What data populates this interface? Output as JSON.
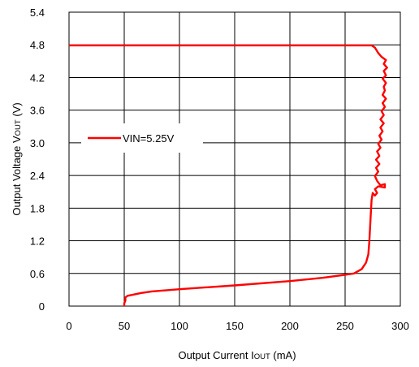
{
  "chart_data": {
    "type": "line",
    "xlabel": {
      "main": "Output Current I",
      "sub": "OUT",
      "unit": " (mA)"
    },
    "ylabel": {
      "main": "Output Voltage V",
      "sub": "OUT",
      "unit": " (V)"
    },
    "xlim": [
      0,
      300
    ],
    "ylim": [
      0,
      5.4
    ],
    "x_ticks": [
      "0",
      "50",
      "100",
      "150",
      "200",
      "250",
      "300"
    ],
    "y_ticks": [
      "0",
      "0.6",
      "1.2",
      "1.8",
      "2.4",
      "3.0",
      "3.6",
      "4.2",
      "4.8",
      "5.4"
    ],
    "grid": true,
    "legend_position": "left-middle",
    "series_color": "#ff0000",
    "series": [
      {
        "name": "VIN=5.25V",
        "points": [
          [
            0,
            4.79
          ],
          [
            100,
            4.79
          ],
          [
            200,
            4.79
          ],
          [
            274,
            4.79
          ],
          [
            277,
            4.75
          ],
          [
            280,
            4.65
          ],
          [
            283,
            4.58
          ],
          [
            287,
            4.52
          ],
          [
            285,
            4.45
          ],
          [
            288,
            4.38
          ],
          [
            285,
            4.32
          ],
          [
            287,
            4.24
          ],
          [
            284,
            4.18
          ],
          [
            287,
            4.1
          ],
          [
            285,
            4.03
          ],
          [
            286,
            3.96
          ],
          [
            284,
            3.88
          ],
          [
            287,
            3.81
          ],
          [
            284,
            3.73
          ],
          [
            286,
            3.66
          ],
          [
            283,
            3.58
          ],
          [
            285,
            3.51
          ],
          [
            282,
            3.43
          ],
          [
            285,
            3.36
          ],
          [
            282,
            3.28
          ],
          [
            284,
            3.21
          ],
          [
            281,
            3.13
          ],
          [
            283,
            3.06
          ],
          [
            280,
            2.98
          ],
          [
            282,
            2.91
          ],
          [
            279,
            2.84
          ],
          [
            281,
            2.76
          ],
          [
            278,
            2.69
          ],
          [
            281,
            2.61
          ],
          [
            278,
            2.54
          ],
          [
            280,
            2.47
          ],
          [
            277,
            2.39
          ],
          [
            279,
            2.3
          ],
          [
            282,
            2.22
          ],
          [
            286,
            2.24
          ],
          [
            286,
            2.18
          ],
          [
            280,
            2.2
          ],
          [
            277,
            2.15
          ],
          [
            279,
            2.08
          ],
          [
            277,
            2.03
          ],
          [
            275,
            2.08
          ],
          [
            274,
            1.95
          ],
          [
            273,
            1.6
          ],
          [
            272,
            1.2
          ],
          [
            271,
            0.95
          ],
          [
            269,
            0.8
          ],
          [
            265,
            0.68
          ],
          [
            258,
            0.6
          ],
          [
            248,
            0.57
          ],
          [
            230,
            0.52
          ],
          [
            200,
            0.46
          ],
          [
            150,
            0.38
          ],
          [
            100,
            0.31
          ],
          [
            75,
            0.27
          ],
          [
            65,
            0.24
          ],
          [
            58,
            0.21
          ],
          [
            53,
            0.19
          ],
          [
            51,
            0.16
          ],
          [
            51,
            0.1
          ],
          [
            50,
            0.05
          ],
          [
            50,
            0.0
          ]
        ]
      }
    ]
  }
}
